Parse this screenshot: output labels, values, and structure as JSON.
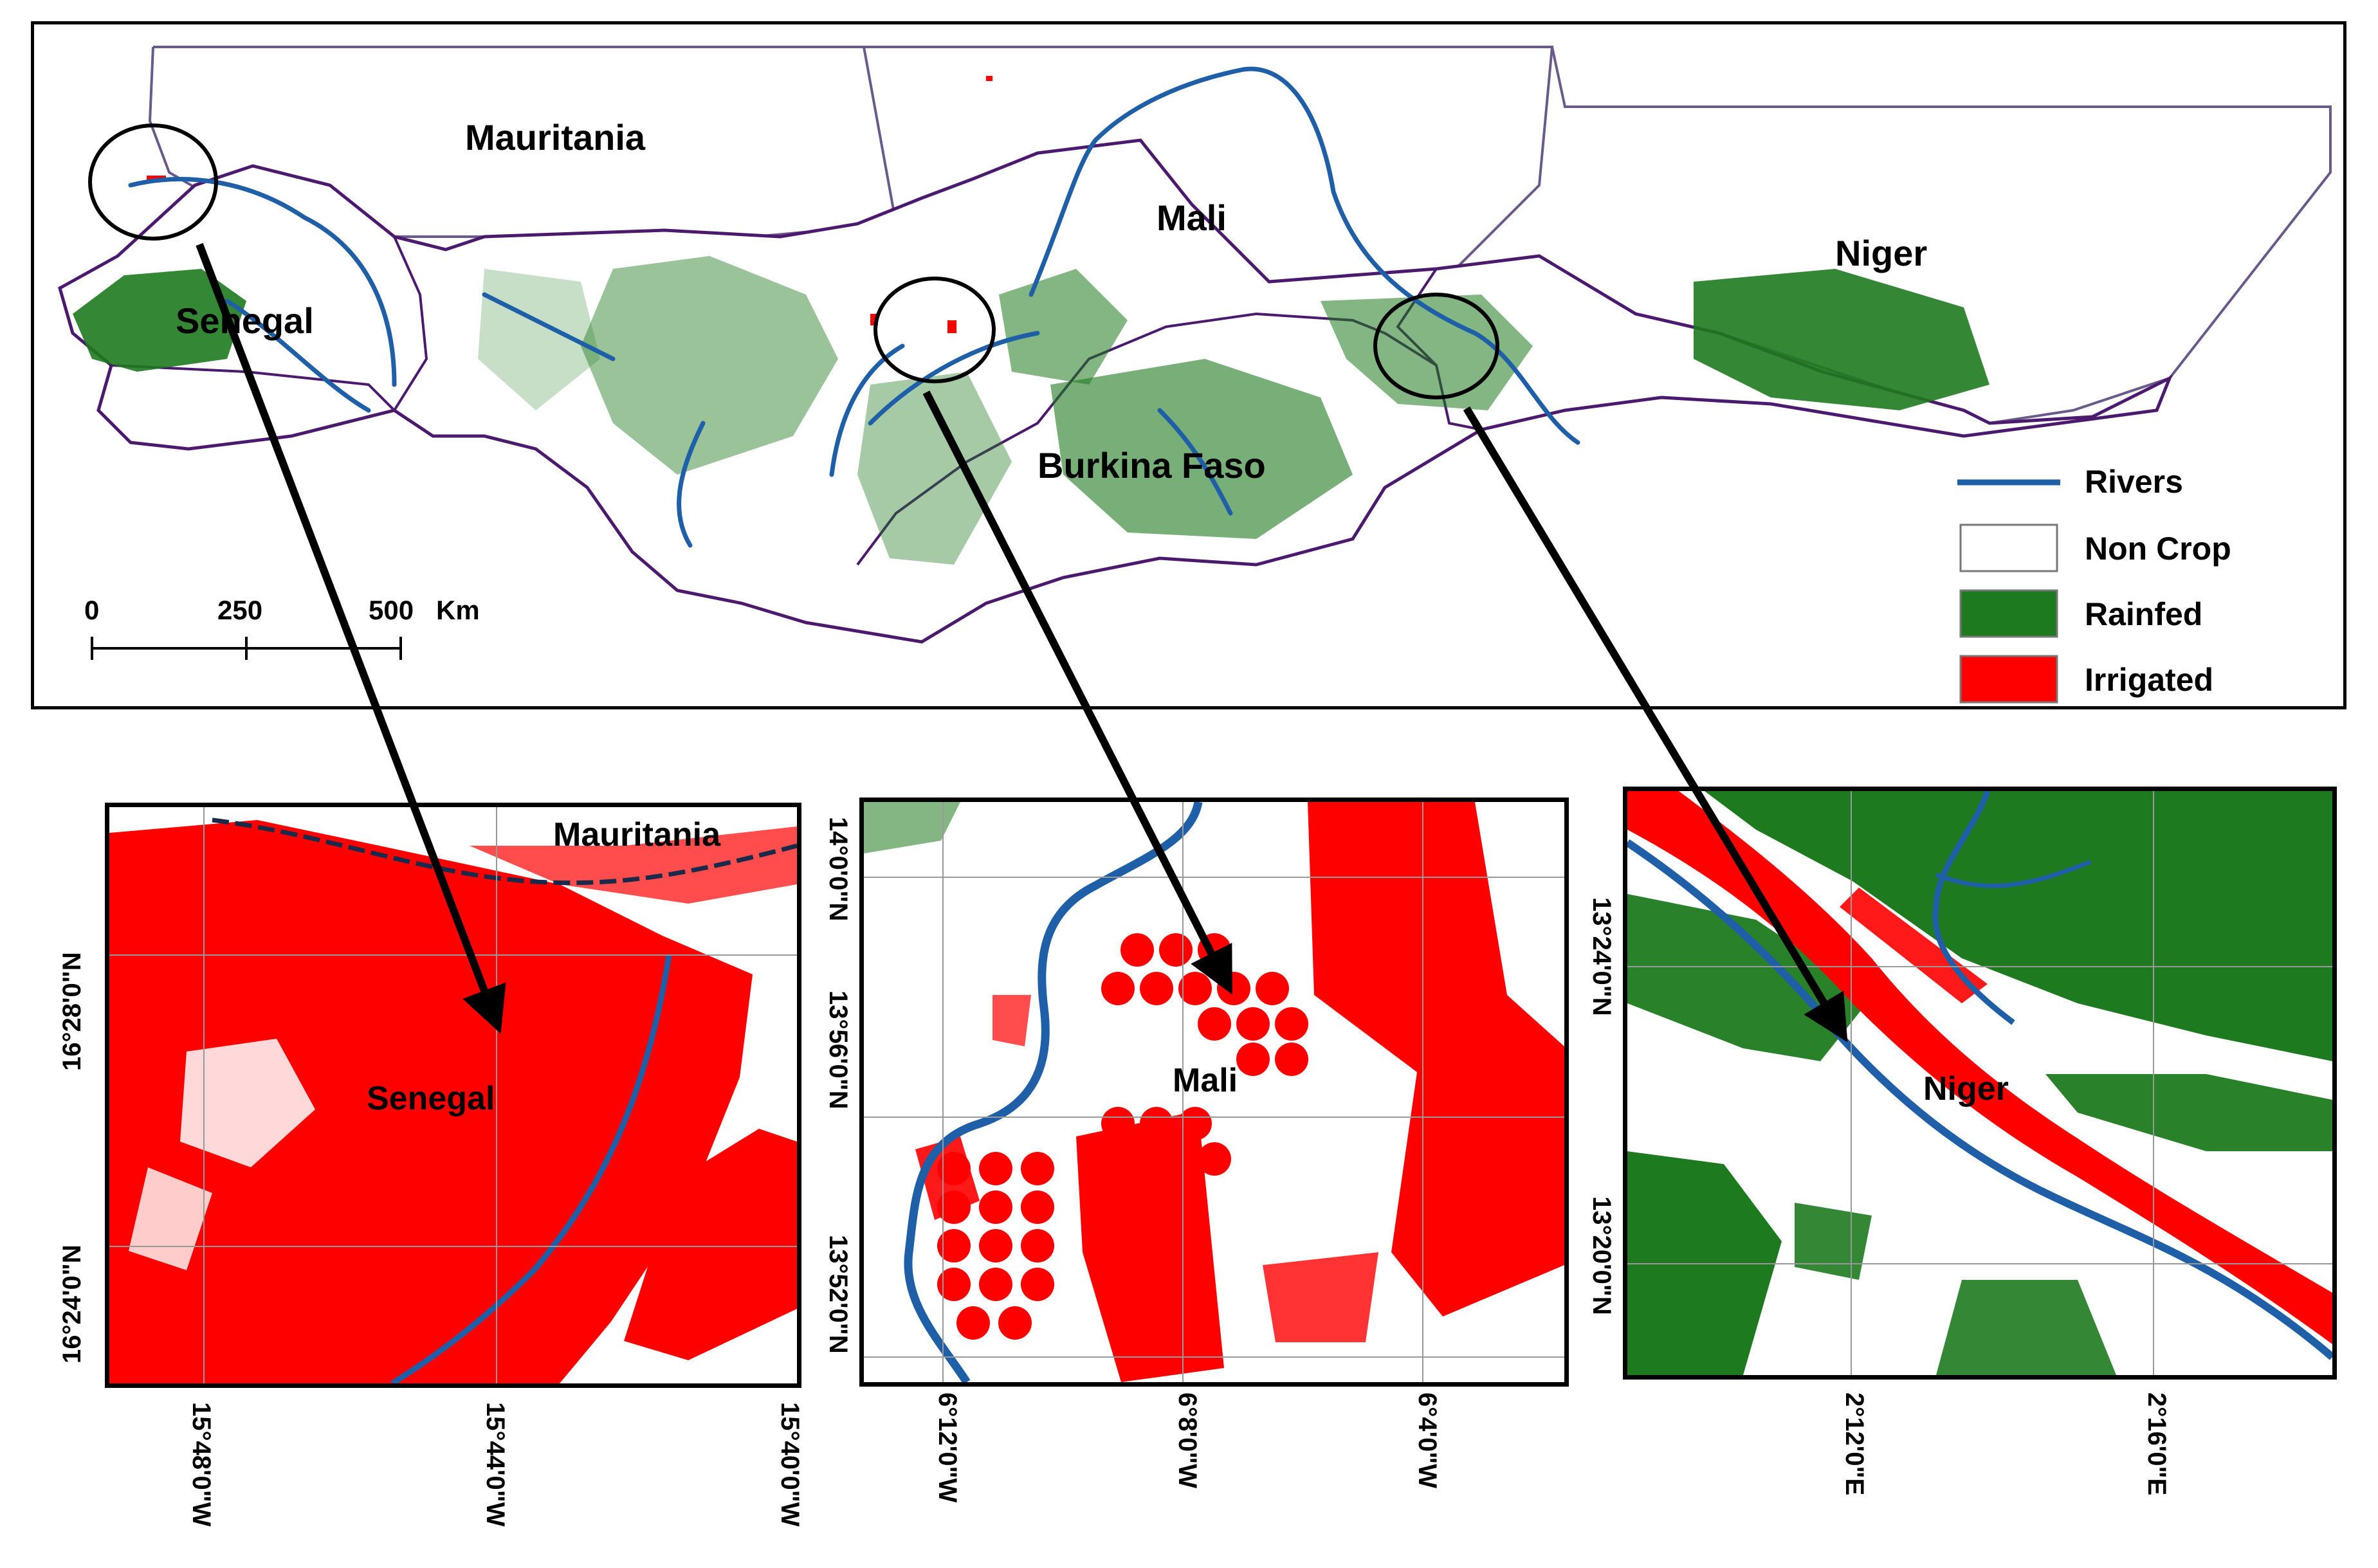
{
  "countries": {
    "mauritania": "Mauritania",
    "mali": "Mali",
    "niger": "Niger",
    "senegal": "Senegal",
    "burkina_faso": "Burkina Faso"
  },
  "legend": {
    "items": [
      {
        "label": "Rivers",
        "symbol": "line",
        "color": "#1f5fa8"
      },
      {
        "label": "Non Crop",
        "symbol": "box",
        "color": "#ffffff"
      },
      {
        "label": "Rainfed",
        "symbol": "box",
        "color": "#1e7a1e"
      },
      {
        "label": "Irrigated",
        "symbol": "box",
        "color": "#ff0000"
      }
    ]
  },
  "scale_bar": {
    "ticks": [
      "0",
      "250",
      "500"
    ],
    "unit": "Km"
  },
  "insets": {
    "senegal": {
      "label": "Senegal",
      "secondary_label": "Mauritania",
      "lat_ticks": [
        "16°28'0\"N",
        "16°24'0\"N"
      ],
      "lon_ticks": [
        "15°48'0\"W",
        "15°44'0\"W",
        "15°40'0\"W"
      ]
    },
    "mali": {
      "label": "Mali",
      "lat_ticks": [
        "14°0'0\"N",
        "13°56'0\"N",
        "13°52'0\"N"
      ],
      "lon_ticks": [
        "6°12'0\"W",
        "6°8'0\"W",
        "6°4'0\"W"
      ]
    },
    "niger": {
      "label": "Niger",
      "lat_ticks": [
        "13°24'0\"N",
        "13°20'0\"N"
      ],
      "lon_ticks": [
        "2°12'0\"E",
        "2°16'0\"E"
      ]
    }
  },
  "colors": {
    "river": "#1f5fa8",
    "rainfed": "#1e7a1e",
    "irrigated": "#ff0000",
    "border": "#4b1a6e"
  }
}
